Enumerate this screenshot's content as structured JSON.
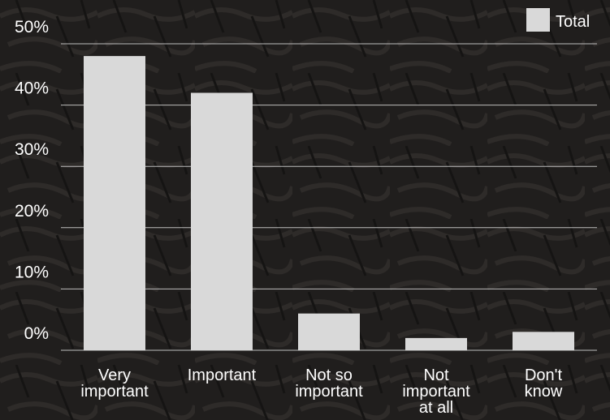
{
  "chart_data": {
    "type": "bar",
    "title": "",
    "xlabel": "",
    "ylabel": "",
    "categories": [
      [
        "Very",
        "important"
      ],
      [
        "Important"
      ],
      [
        "Not so",
        "important"
      ],
      [
        "Not",
        "important",
        "at all"
      ],
      [
        "Don't",
        "know"
      ]
    ],
    "series": [
      {
        "name": "Total",
        "color": "#d9d9d9",
        "values": [
          48,
          42,
          6,
          2,
          3
        ]
      }
    ],
    "ylim": [
      0,
      50
    ],
    "yticks": [
      0,
      10,
      20,
      30,
      40,
      50
    ],
    "ytick_labels": [
      "0%",
      "10%",
      "20%",
      "30%",
      "40%",
      "50%"
    ],
    "grid": true,
    "legend": "top-right",
    "colors": {
      "background": "#1e1c1b",
      "grid": "#bdbdbd",
      "text": "#ffffff"
    }
  }
}
